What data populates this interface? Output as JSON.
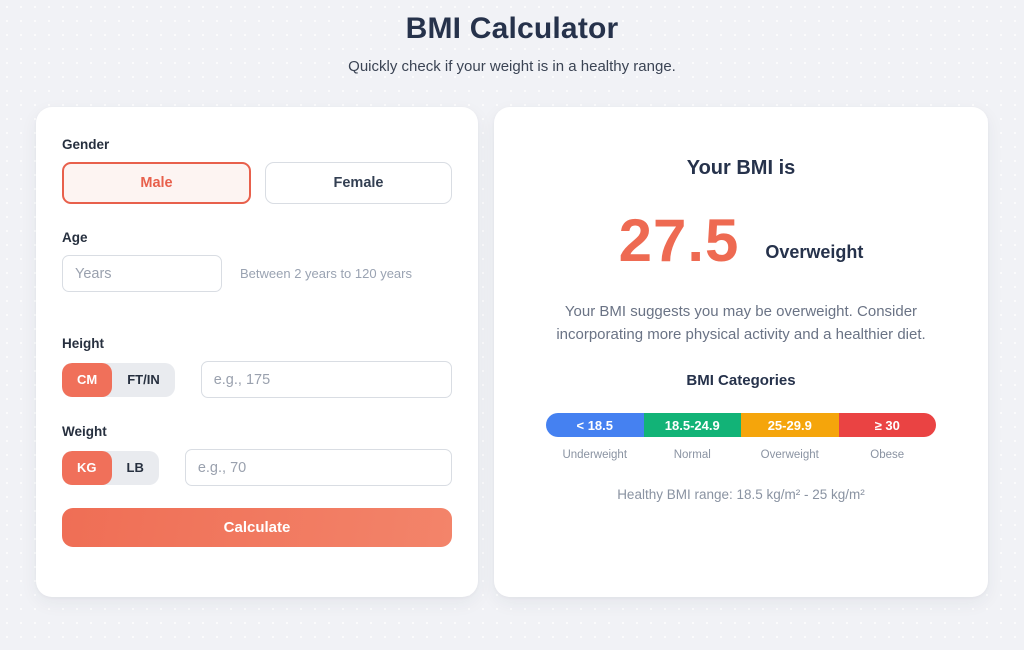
{
  "header": {
    "title": "BMI Calculator",
    "subtitle": "Quickly check if your weight is in a healthy range."
  },
  "form": {
    "gender": {
      "label": "Gender",
      "options": [
        {
          "label": "Male",
          "selected": true
        },
        {
          "label": "Female",
          "selected": false
        }
      ]
    },
    "age": {
      "label": "Age",
      "value": "",
      "placeholder": "Years",
      "hint": "Between 2 years to 120 years"
    },
    "height": {
      "label": "Height",
      "units": [
        {
          "label": "CM",
          "selected": true
        },
        {
          "label": "FT/IN",
          "selected": false
        }
      ],
      "value": "",
      "placeholder": "e.g., 175"
    },
    "weight": {
      "label": "Weight",
      "units": [
        {
          "label": "KG",
          "selected": true
        },
        {
          "label": "LB",
          "selected": false
        }
      ],
      "value": "",
      "placeholder": "e.g., 70"
    },
    "calculate_label": "Calculate"
  },
  "result": {
    "title": "Your BMI is",
    "bmi_value": "27.5",
    "category": "Overweight",
    "message": "Your BMI suggests you may be overweight. Consider incorporating more physical activity and a healthier diet.",
    "categories_title": "BMI Categories",
    "categories": [
      {
        "range": "< 18.5",
        "label": "Underweight",
        "color": "#4581f1"
      },
      {
        "range": "18.5-24.9",
        "label": "Normal",
        "color": "#12b377"
      },
      {
        "range": "25-29.9",
        "label": "Overweight",
        "color": "#f5a50b"
      },
      {
        "range": "≥ 30",
        "label": "Obese",
        "color": "#ea4343"
      }
    ],
    "healthy_range": "Healthy BMI range: 18.5 kg/m² - 25 kg/m²"
  },
  "colors": {
    "accent": "#ee6a52",
    "accent_light_bg": "#fdf4f2",
    "page_bg": "#f1f2f6",
    "heading": "#26324b",
    "muted": "#8a93a2"
  }
}
